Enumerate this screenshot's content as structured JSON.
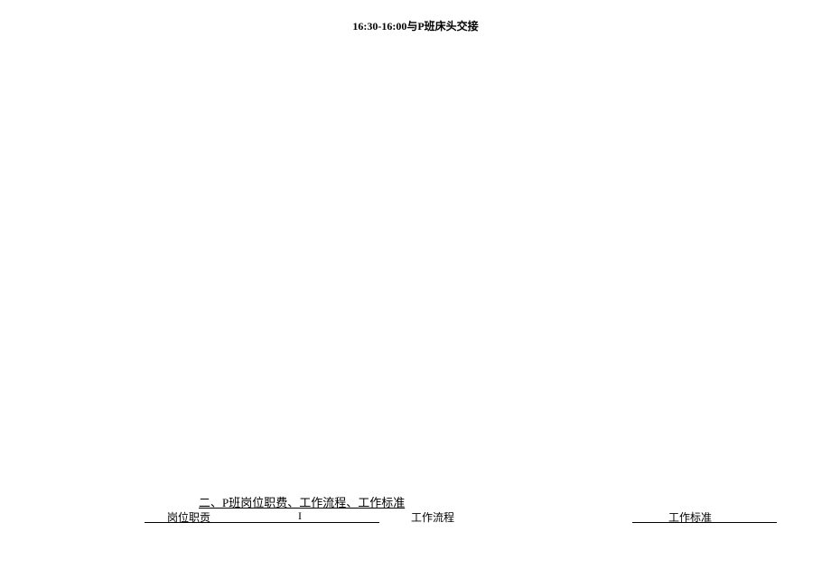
{
  "header": {
    "text": "16:30-16:00与P班床头交接"
  },
  "section": {
    "title": "二、P班岗位职费、工作流程、工作标准"
  },
  "table_header": {
    "col1": "岗位职贡",
    "divider": "I",
    "col2": "工作流程",
    "col3": "工作标准"
  }
}
